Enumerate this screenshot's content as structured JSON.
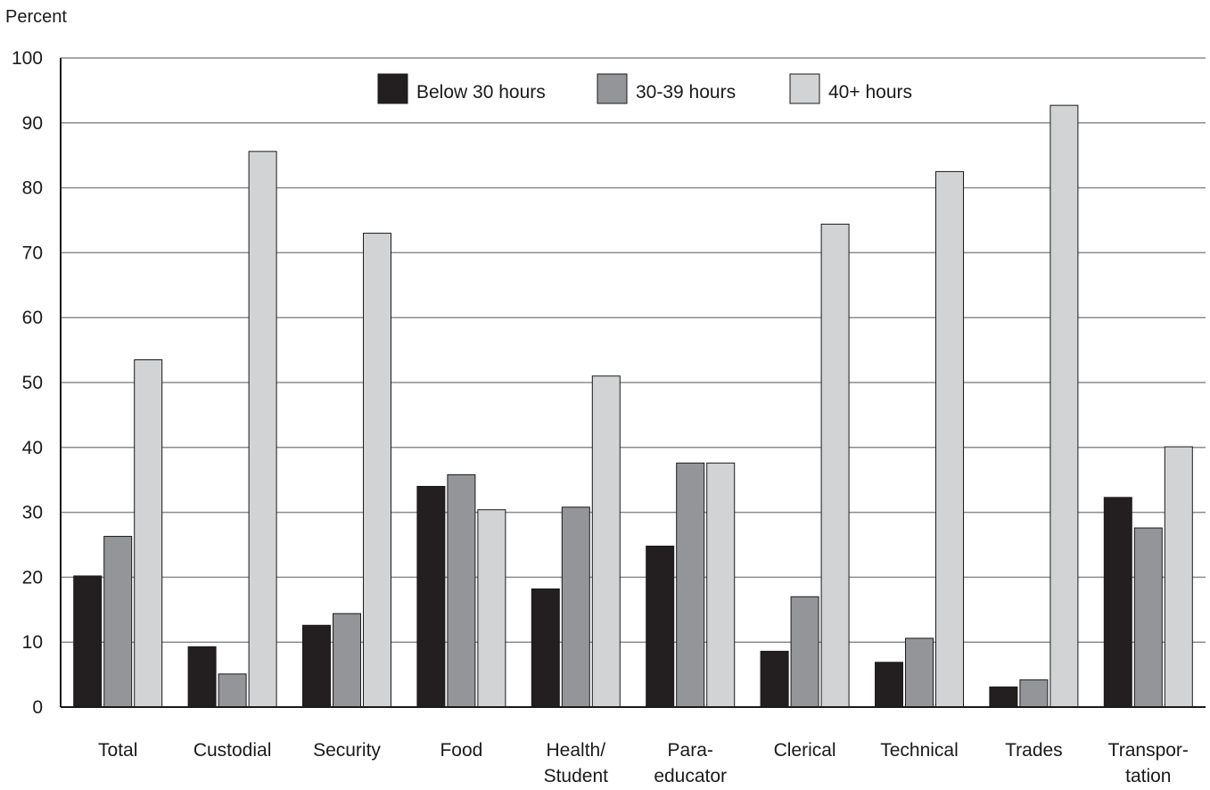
{
  "chart_data": {
    "type": "bar",
    "ylabel": "Percent",
    "ylim": [
      0,
      100
    ],
    "yticks": [
      0,
      10,
      20,
      30,
      40,
      50,
      60,
      70,
      80,
      90,
      100
    ],
    "grid": true,
    "legend_position": "top-center",
    "categories": [
      [
        "Total"
      ],
      [
        "Custodial"
      ],
      [
        "Security"
      ],
      [
        "Food"
      ],
      [
        "Health/",
        "Student"
      ],
      [
        "Para-",
        "educator"
      ],
      [
        "Clerical"
      ],
      [
        "Technical"
      ],
      [
        "Trades"
      ],
      [
        "Transpor-",
        "tation"
      ]
    ],
    "series": [
      {
        "name": "Below 30 hours",
        "color": "#231f20",
        "values": [
          20.2,
          9.3,
          12.6,
          34.0,
          18.2,
          24.8,
          8.6,
          6.9,
          3.1,
          32.3
        ]
      },
      {
        "name": "30-39 hours",
        "color": "#939598",
        "values": [
          26.3,
          5.1,
          14.4,
          35.8,
          30.8,
          37.6,
          17.0,
          10.6,
          4.2,
          27.6
        ]
      },
      {
        "name": "40+ hours",
        "color": "#d1d3d4",
        "values": [
          53.5,
          85.6,
          73.0,
          30.4,
          51.0,
          37.6,
          74.4,
          82.5,
          92.7,
          40.1
        ]
      }
    ]
  }
}
